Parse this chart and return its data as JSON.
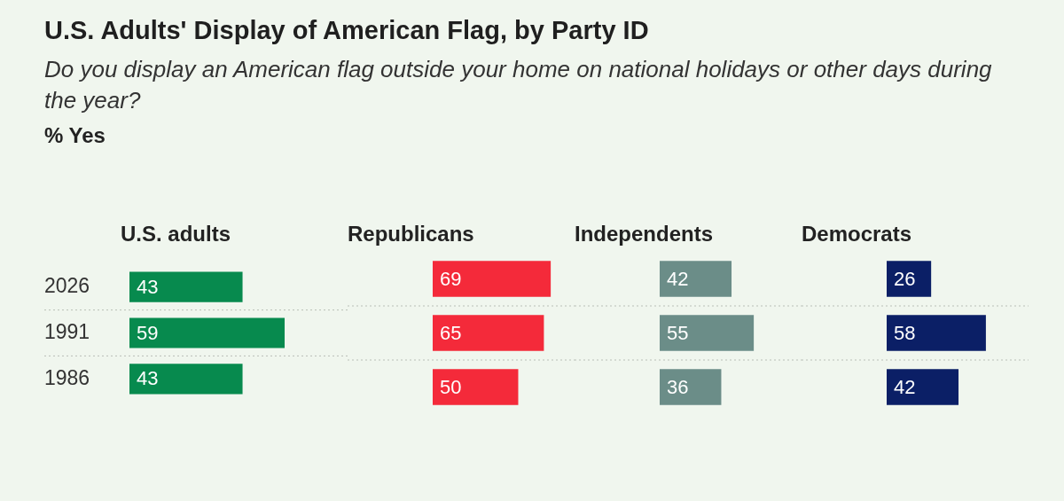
{
  "chart_data": [
    {
      "type": "other",
      "title": "U.S. Adults' Display of American Flag, by Party ID",
      "subtitle": "Do you display an American flag outside your home on national holidays or other days during the year?",
      "annotations": [
        "% Yes"
      ]
    },
    {
      "type": "bar",
      "orientation": "horizontal",
      "title": "U.S. adults",
      "categories": [
        "2026",
        "1991",
        "1986"
      ],
      "values": [
        43,
        59,
        43
      ],
      "color": "#078a4e",
      "data_labels": true,
      "grid": "y",
      "tick_labels": "y"
    },
    {
      "type": "bar",
      "orientation": "horizontal",
      "title": "Republicans",
      "categories": [
        "2026",
        "1991",
        "1986"
      ],
      "values": [
        69,
        65,
        50
      ],
      "color": "#f42a3a",
      "data_labels": true,
      "grid": "y",
      "tick_labels": false
    },
    {
      "type": "bar",
      "orientation": "horizontal",
      "title": "Independents",
      "categories": [
        "2026",
        "1991",
        "1986"
      ],
      "values": [
        42,
        55,
        36
      ],
      "color": "#6b8d88",
      "data_labels": true,
      "grid": "y",
      "tick_labels": false
    },
    {
      "type": "bar",
      "orientation": "horizontal",
      "title": "Democrats",
      "categories": [
        "2026",
        "1991",
        "1986"
      ],
      "values": [
        26,
        58,
        42
      ],
      "color": "#0b1f66",
      "data_labels": true,
      "grid": "y",
      "tick_labels": false
    }
  ]
}
